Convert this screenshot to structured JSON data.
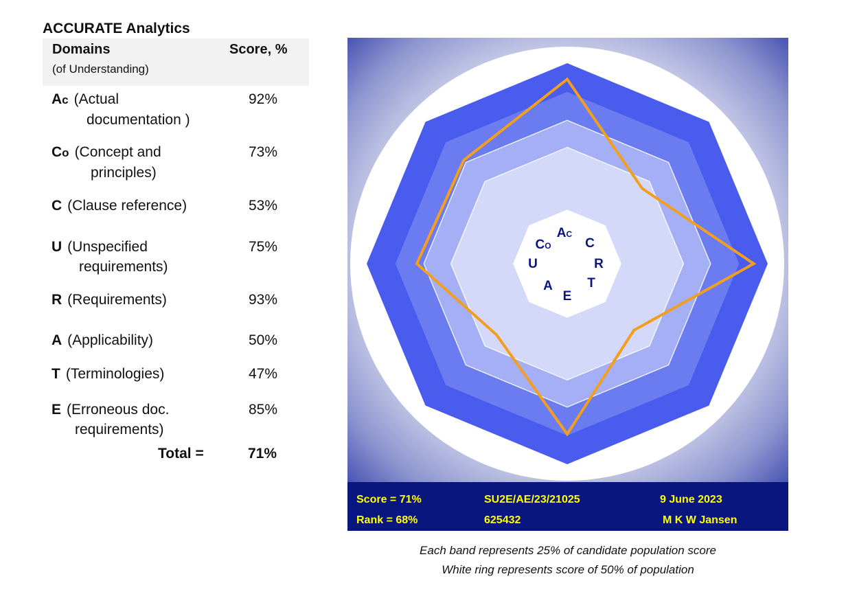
{
  "title": "ACCURATE Analytics",
  "table": {
    "header_domains": "Domains",
    "header_domains_sub": "(of Understanding)",
    "header_score": "Score, %",
    "rows": [
      {
        "code": "A",
        "code_sub": "c",
        "desc1": "(Actual",
        "desc2": "documentation )",
        "score": "92%"
      },
      {
        "code": "C",
        "code_sub": "o",
        "desc1": "(Concept and",
        "desc2": "principles)",
        "score": "73%"
      },
      {
        "code": "C",
        "code_sub": "",
        "desc1": "(Clause reference)",
        "desc2": "",
        "score": "53%"
      },
      {
        "code": "U",
        "code_sub": "",
        "desc1": "(Unspecified",
        "desc2": "requirements)",
        "score": "75%"
      },
      {
        "code": "R",
        "code_sub": "",
        "desc1": "(Requirements)",
        "desc2": "",
        "score": "93%"
      },
      {
        "code": "A",
        "code_sub": "",
        "desc1": "(Applicability)",
        "desc2": "",
        "score": "50%"
      },
      {
        "code": "T",
        "code_sub": "",
        "desc1": "(Terminologies)",
        "desc2": "",
        "score": "47%"
      },
      {
        "code": "E",
        "code_sub": "",
        "desc1": "(Erroneous doc.",
        "desc2": "requirements)",
        "score": "85%"
      }
    ],
    "total_label": "Total =",
    "total_value": "71%"
  },
  "chart_data": {
    "type": "radar",
    "axes": [
      "Ac",
      "C",
      "R",
      "T",
      "E",
      "A",
      "U",
      "Co"
    ],
    "values": [
      92,
      53,
      93,
      47,
      85,
      50,
      75,
      73
    ],
    "range": [
      0,
      100
    ],
    "bands": [
      25,
      50,
      75,
      100
    ],
    "colors": {
      "line": "#f29e1f",
      "band_outer": "#4a5cee",
      "band_mid": "#6a7cf0",
      "band_inner": "#a4aff5",
      "band_core": "#d4d9fa",
      "ring": "#ffffff",
      "background": "#2c3aa8"
    }
  },
  "center_labels": {
    "ac": "A",
    "ac_sub": "C",
    "c": "C",
    "r": "R",
    "t": "T",
    "e": "E",
    "a": "A",
    "u": "U",
    "co": "C",
    "co_sub": "O"
  },
  "info": {
    "score": "Score = 71%",
    "rank": "Rank = 68%",
    "ref": "SU2E/AE/23/21025",
    "id": "625432",
    "date": "9 June 2023",
    "name": "M K W Jansen"
  },
  "captions": {
    "line1": "Each band represents 25% of candidate population score",
    "line2": "White ring represents score of 50% of population"
  }
}
